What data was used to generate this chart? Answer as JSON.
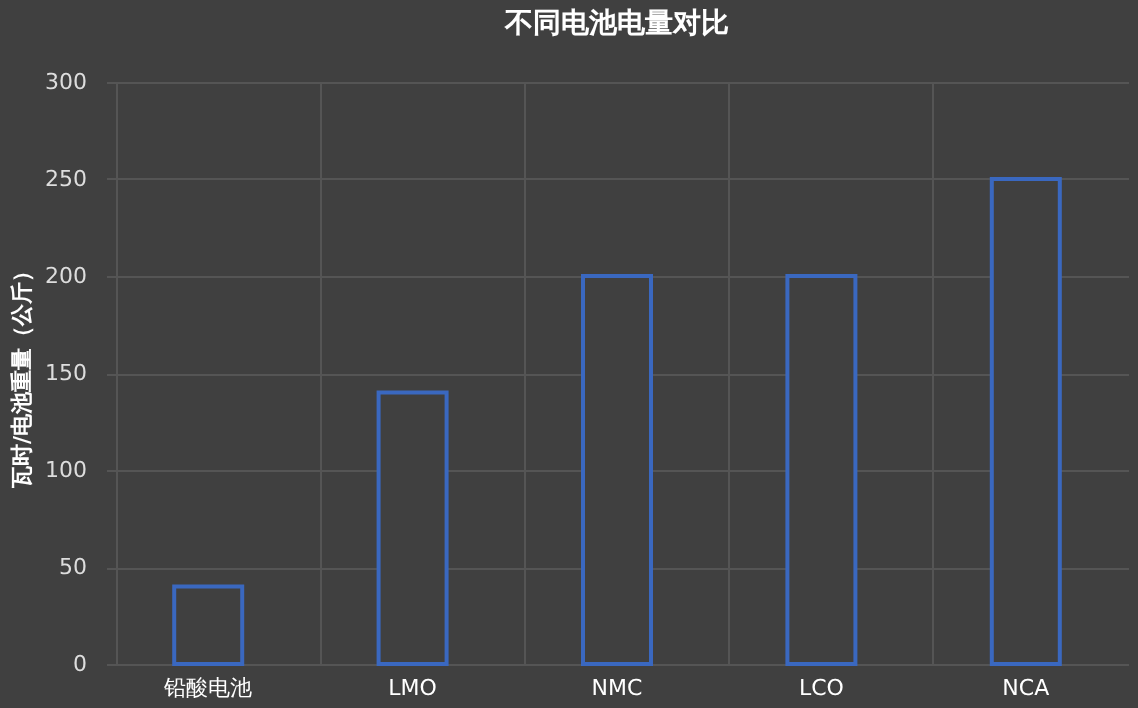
{
  "chart_data": {
    "type": "bar",
    "title": "不同电池电量对比",
    "ylabel": "瓦时/电池重量（公斤）",
    "categories": [
      "铅酸电池",
      "LMO",
      "NMC",
      "LCO",
      "NCA"
    ],
    "values": [
      40,
      140,
      200,
      200,
      250
    ],
    "color": "#3a68c0",
    "ylim": [
      0,
      300
    ],
    "yticks": [
      0,
      50,
      100,
      150,
      200,
      250,
      300
    ],
    "grid": true
  }
}
